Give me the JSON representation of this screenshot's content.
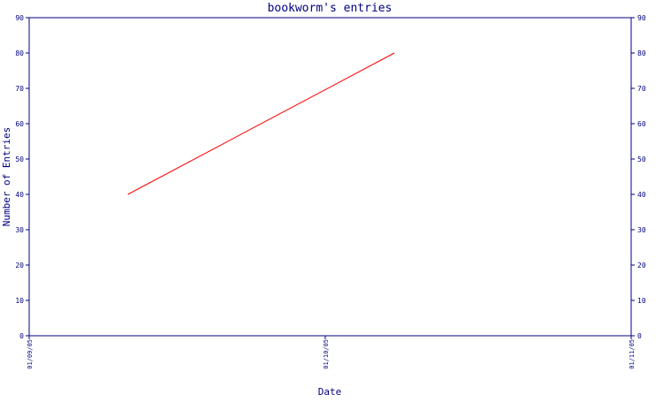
{
  "chart_data": {
    "type": "line",
    "title": "bookworm's entries",
    "xlabel": "Date",
    "ylabel": "Number of Entries",
    "x_ticks": [
      "01/09/05",
      "01/10/05",
      "01/11/05"
    ],
    "x_range": [
      "2005-09-01",
      "2005-11-01"
    ],
    "ylim": [
      0,
      90
    ],
    "y_ticks": [
      0,
      10,
      20,
      30,
      40,
      50,
      60,
      70,
      80,
      90
    ],
    "grid": false,
    "series": [
      {
        "color": "#ff0000",
        "points": [
          {
            "x": "2005-09-11",
            "y": 40
          },
          {
            "x": "2005-10-08",
            "y": 80
          }
        ]
      }
    ]
  },
  "colors": {
    "axis": "#000080",
    "text": "#000080",
    "line": "#ff0000"
  }
}
